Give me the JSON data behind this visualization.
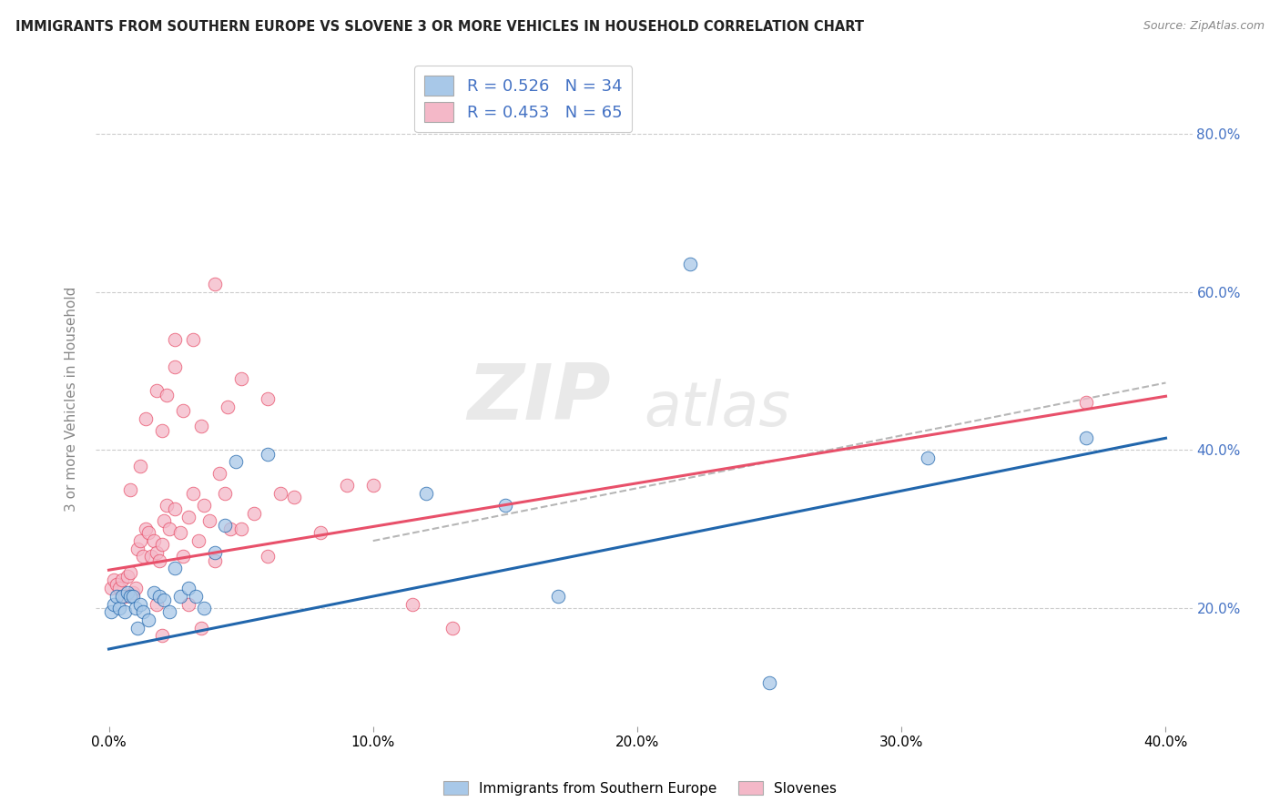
{
  "title": "IMMIGRANTS FROM SOUTHERN EUROPE VS SLOVENE 3 OR MORE VEHICLES IN HOUSEHOLD CORRELATION CHART",
  "source": "Source: ZipAtlas.com",
  "ylabel": "3 or more Vehicles in Household",
  "xlim": [
    -0.005,
    0.41
  ],
  "ylim": [
    0.05,
    0.88
  ],
  "xtick_labels": [
    "0.0%",
    "",
    "",
    "",
    "",
    "10.0%",
    "",
    "",
    "",
    "",
    "20.0%",
    "",
    "",
    "",
    "",
    "30.0%",
    "",
    "",
    "",
    "",
    "40.0%"
  ],
  "xtick_vals": [
    0.0,
    0.02,
    0.04,
    0.06,
    0.08,
    0.1,
    0.12,
    0.14,
    0.16,
    0.18,
    0.2,
    0.22,
    0.24,
    0.26,
    0.28,
    0.3,
    0.32,
    0.34,
    0.36,
    0.38,
    0.4
  ],
  "ytick_labels": [
    "20.0%",
    "40.0%",
    "60.0%",
    "80.0%"
  ],
  "ytick_vals": [
    0.2,
    0.4,
    0.6,
    0.8
  ],
  "watermark_zip": "ZIP",
  "watermark_atlas": "atlas",
  "legend_r1": "R = 0.526",
  "legend_n1": "N = 34",
  "legend_r2": "R = 0.453",
  "legend_n2": "N = 65",
  "color_blue": "#a8c8e8",
  "color_pink": "#f4b8c8",
  "line_color_blue": "#2166ac",
  "line_color_pink": "#e8506a",
  "line_color_gray_dash": "#aaaaaa",
  "legend_label1": "Immigrants from Southern Europe",
  "legend_label2": "Slovenes",
  "blue_line_x0": 0.0,
  "blue_line_y0": 0.148,
  "blue_line_x1": 0.4,
  "blue_line_y1": 0.415,
  "pink_line_x0": 0.0,
  "pink_line_y0": 0.248,
  "pink_line_x1": 0.4,
  "pink_line_y1": 0.468,
  "dash_line_x0": 0.1,
  "dash_line_y0": 0.285,
  "dash_line_x1": 0.4,
  "dash_line_y1": 0.485,
  "blue_scatter_x": [
    0.001,
    0.002,
    0.003,
    0.004,
    0.005,
    0.006,
    0.007,
    0.008,
    0.009,
    0.01,
    0.011,
    0.012,
    0.013,
    0.015,
    0.017,
    0.019,
    0.021,
    0.023,
    0.025,
    0.027,
    0.03,
    0.033,
    0.036,
    0.04,
    0.044,
    0.048,
    0.06,
    0.17,
    0.25,
    0.31,
    0.15,
    0.12,
    0.37,
    0.22
  ],
  "blue_scatter_y": [
    0.195,
    0.205,
    0.215,
    0.2,
    0.215,
    0.195,
    0.22,
    0.215,
    0.215,
    0.2,
    0.175,
    0.205,
    0.195,
    0.185,
    0.22,
    0.215,
    0.21,
    0.195,
    0.25,
    0.215,
    0.225,
    0.215,
    0.2,
    0.27,
    0.305,
    0.385,
    0.395,
    0.215,
    0.105,
    0.39,
    0.33,
    0.345,
    0.415,
    0.635
  ],
  "pink_scatter_x": [
    0.001,
    0.002,
    0.003,
    0.004,
    0.005,
    0.006,
    0.007,
    0.008,
    0.009,
    0.01,
    0.011,
    0.012,
    0.013,
    0.014,
    0.015,
    0.016,
    0.017,
    0.018,
    0.019,
    0.02,
    0.021,
    0.022,
    0.023,
    0.025,
    0.027,
    0.028,
    0.03,
    0.032,
    0.034,
    0.036,
    0.038,
    0.04,
    0.042,
    0.044,
    0.046,
    0.05,
    0.055,
    0.06,
    0.065,
    0.07,
    0.08,
    0.09,
    0.1,
    0.115,
    0.13,
    0.012,
    0.018,
    0.025,
    0.032,
    0.04,
    0.05,
    0.06,
    0.008,
    0.014,
    0.02,
    0.028,
    0.035,
    0.025,
    0.035,
    0.022,
    0.03,
    0.018,
    0.02,
    0.045,
    0.37
  ],
  "pink_scatter_y": [
    0.225,
    0.235,
    0.23,
    0.225,
    0.235,
    0.215,
    0.24,
    0.245,
    0.22,
    0.225,
    0.275,
    0.285,
    0.265,
    0.3,
    0.295,
    0.265,
    0.285,
    0.27,
    0.26,
    0.28,
    0.31,
    0.33,
    0.3,
    0.325,
    0.295,
    0.265,
    0.315,
    0.345,
    0.285,
    0.33,
    0.31,
    0.26,
    0.37,
    0.345,
    0.3,
    0.3,
    0.32,
    0.265,
    0.345,
    0.34,
    0.295,
    0.355,
    0.355,
    0.205,
    0.175,
    0.38,
    0.475,
    0.505,
    0.54,
    0.61,
    0.49,
    0.465,
    0.35,
    0.44,
    0.425,
    0.45,
    0.43,
    0.54,
    0.175,
    0.47,
    0.205,
    0.205,
    0.165,
    0.455,
    0.46
  ]
}
